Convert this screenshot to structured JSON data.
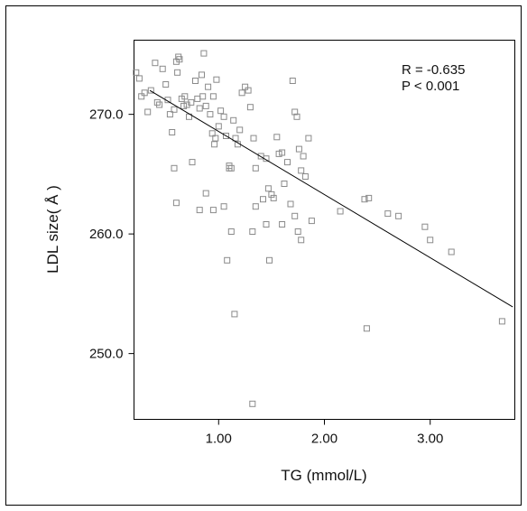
{
  "chart_data": {
    "type": "scatter",
    "title": "",
    "xlabel": "TG (mmol/L)",
    "ylabel": "LDL size( Å )",
    "xlim": [
      0.2,
      3.8
    ],
    "ylim": [
      244.5,
      276.2
    ],
    "xticks": [
      1.0,
      2.0,
      3.0
    ],
    "xtick_labels": [
      "1.00",
      "2.00",
      "3.00"
    ],
    "yticks": [
      250.0,
      260.0,
      270.0
    ],
    "ytick_labels": [
      "250.0",
      "260.0",
      "270.0"
    ],
    "annotations": [
      "R = -0.635",
      "P < 0.001"
    ],
    "annotation_position": "top-right",
    "grid": false,
    "marker": "hollow-square",
    "fit_line": {
      "x": [
        0.35,
        3.78
      ],
      "y": [
        272.0,
        253.9
      ]
    },
    "points": [
      [
        0.22,
        273.5
      ],
      [
        0.25,
        273.0
      ],
      [
        0.27,
        271.5
      ],
      [
        0.3,
        271.8
      ],
      [
        0.33,
        270.2
      ],
      [
        0.36,
        272.0
      ],
      [
        0.4,
        274.3
      ],
      [
        0.42,
        271.0
      ],
      [
        0.44,
        270.8
      ],
      [
        0.47,
        273.8
      ],
      [
        0.5,
        272.5
      ],
      [
        0.52,
        271.2
      ],
      [
        0.54,
        270.0
      ],
      [
        0.56,
        268.5
      ],
      [
        0.58,
        270.4
      ],
      [
        0.6,
        274.4
      ],
      [
        0.61,
        273.5
      ],
      [
        0.62,
        274.8
      ],
      [
        0.63,
        274.6
      ],
      [
        0.65,
        271.3
      ],
      [
        0.67,
        270.7
      ],
      [
        0.68,
        271.5
      ],
      [
        0.7,
        270.8
      ],
      [
        0.72,
        269.8
      ],
      [
        0.74,
        271.0
      ],
      [
        0.78,
        272.8
      ],
      [
        0.8,
        271.3
      ],
      [
        0.82,
        270.5
      ],
      [
        0.84,
        273.3
      ],
      [
        0.85,
        271.5
      ],
      [
        0.86,
        275.1
      ],
      [
        0.88,
        270.7
      ],
      [
        0.9,
        272.3
      ],
      [
        0.92,
        270.0
      ],
      [
        0.94,
        268.4
      ],
      [
        0.95,
        271.5
      ],
      [
        0.96,
        267.5
      ],
      [
        0.97,
        268.0
      ],
      [
        0.98,
        272.9
      ],
      [
        1.0,
        269.0
      ],
      [
        1.02,
        270.3
      ],
      [
        1.05,
        269.8
      ],
      [
        1.07,
        268.2
      ],
      [
        1.1,
        265.7
      ],
      [
        1.12,
        265.5
      ],
      [
        1.14,
        269.5
      ],
      [
        1.16,
        268.0
      ],
      [
        1.18,
        267.5
      ],
      [
        1.2,
        268.7
      ],
      [
        1.22,
        271.8
      ],
      [
        1.25,
        272.3
      ],
      [
        1.28,
        272.0
      ],
      [
        1.3,
        270.6
      ],
      [
        1.33,
        268.0
      ],
      [
        1.35,
        265.5
      ],
      [
        1.4,
        266.5
      ],
      [
        1.42,
        262.9
      ],
      [
        1.45,
        266.3
      ],
      [
        1.47,
        263.8
      ],
      [
        1.5,
        263.3
      ],
      [
        1.52,
        263.0
      ],
      [
        1.55,
        268.1
      ],
      [
        1.57,
        266.7
      ],
      [
        1.6,
        266.8
      ],
      [
        1.62,
        264.2
      ],
      [
        1.65,
        266.0
      ],
      [
        1.7,
        272.8
      ],
      [
        1.72,
        270.2
      ],
      [
        1.74,
        269.8
      ],
      [
        1.76,
        267.1
      ],
      [
        1.78,
        265.3
      ],
      [
        1.8,
        266.5
      ],
      [
        1.82,
        264.8
      ],
      [
        1.85,
        268.0
      ],
      [
        1.6,
        260.8
      ],
      [
        1.75,
        260.2
      ],
      [
        1.68,
        262.5
      ],
      [
        1.72,
        261.5
      ],
      [
        1.78,
        259.5
      ],
      [
        1.88,
        261.1
      ],
      [
        1.35,
        262.3
      ],
      [
        1.45,
        260.8
      ],
      [
        1.32,
        260.2
      ],
      [
        1.05,
        262.3
      ],
      [
        1.12,
        260.2
      ],
      [
        1.08,
        257.8
      ],
      [
        1.48,
        257.8
      ],
      [
        0.6,
        262.6
      ],
      [
        0.75,
        266.0
      ],
      [
        0.58,
        265.5
      ],
      [
        0.82,
        262.0
      ],
      [
        0.95,
        262.0
      ],
      [
        0.88,
        263.4
      ],
      [
        1.1,
        265.5
      ],
      [
        2.15,
        261.9
      ],
      [
        2.38,
        262.9
      ],
      [
        2.42,
        263.0
      ],
      [
        2.6,
        261.7
      ],
      [
        2.7,
        261.5
      ],
      [
        2.95,
        260.6
      ],
      [
        3.0,
        259.5
      ],
      [
        3.2,
        258.5
      ],
      [
        1.15,
        253.3
      ],
      [
        2.4,
        252.1
      ],
      [
        3.68,
        252.7
      ],
      [
        1.32,
        245.8
      ]
    ]
  }
}
